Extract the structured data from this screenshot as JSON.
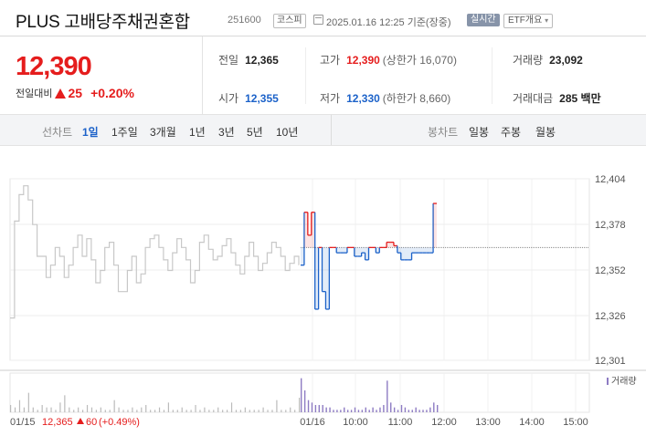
{
  "header": {
    "name": "PLUS 고배당주채권혼합",
    "code": "251600",
    "market": "코스피",
    "datetime": "2025.01.16 12:25 기준(장중)",
    "realtime": "실시간",
    "etf_button": "ETF개요"
  },
  "price": {
    "current": "12,390",
    "change_label": "전일대비",
    "change": "25",
    "change_rate": "+0.20%"
  },
  "stats": {
    "prev_label": "전일",
    "prev": "12,365",
    "high_label": "고가",
    "high": "12,390",
    "upper_limit": "(상한가 16,070)",
    "volume_label": "거래량",
    "volume": "23,092",
    "open_label": "시가",
    "open": "12,355",
    "low_label": "저가",
    "low": "12,330",
    "lower_limit": "(하한가 8,660)",
    "amount_label": "거래대금",
    "amount": "285 백만"
  },
  "tabs": {
    "line_label": "선차트",
    "periods": [
      "1일",
      "1주일",
      "3개월",
      "1년",
      "3년",
      "5년",
      "10년"
    ],
    "active_period": "1일",
    "candle_label": "봉차트",
    "candles": [
      "일봉",
      "주봉",
      "월봉"
    ]
  },
  "colors": {
    "up": "#e51d1d",
    "down": "#1c62c9",
    "neutral": "#c8c8c8",
    "volume": "#8e7cc3"
  },
  "chart_data": {
    "type": "line",
    "ylim": [
      12301,
      12404
    ],
    "y_ticks": [
      "12,404",
      "12,378",
      "12,352",
      "12,326",
      "12,301"
    ],
    "x_ticks": [
      "01/16",
      "10:00",
      "11:00",
      "12:00",
      "13:00",
      "14:00",
      "15:00"
    ],
    "base": 12365,
    "volume_label": "거래량",
    "prev_day": {
      "date": "01/15",
      "close": "12,365",
      "change": "60",
      "rate": "(+0.49%)"
    },
    "prev_series": [
      12325,
      12380,
      12395,
      12400,
      12392,
      12378,
      12360,
      12360,
      12348,
      12355,
      12365,
      12360,
      12348,
      12355,
      12365,
      12372,
      12360,
      12370,
      12358,
      12345,
      12352,
      12365,
      12368,
      12355,
      12340,
      12340,
      12352,
      12360,
      12345,
      12350,
      12365,
      12370,
      12372,
      12365,
      12358,
      12352,
      12362,
      12370,
      12365,
      12358,
      12345,
      12352,
      12368,
      12372,
      12364,
      12358,
      12360,
      12366,
      12370,
      12362,
      12355,
      12350,
      12360,
      12368,
      12360,
      12352,
      12356,
      12362,
      12368,
      12365,
      12360,
      12352,
      12356,
      12360,
      12355
    ],
    "today_series": [
      12355,
      12385,
      12372,
      12385,
      12330,
      12365,
      12340,
      12330,
      12365,
      12365,
      12362,
      12362,
      12362,
      12365,
      12365,
      12360,
      12360,
      12362,
      12358,
      12365,
      12365,
      12362,
      12365,
      12365,
      12368,
      12368,
      12366,
      12362,
      12358,
      12358,
      12358,
      12362,
      12362,
      12362,
      12362,
      12362,
      12362,
      12390,
      12390
    ],
    "prev_volume": [
      3,
      2,
      5,
      2,
      8,
      2,
      1,
      3,
      2,
      2,
      1,
      4,
      7,
      2,
      1,
      2,
      1,
      3,
      2,
      1,
      2,
      1,
      1,
      5,
      2,
      1,
      1,
      2,
      1,
      2,
      3,
      1,
      1,
      2,
      1,
      4,
      1,
      1,
      2,
      1,
      1,
      3,
      1,
      2,
      1,
      1,
      2,
      1,
      1,
      4,
      1,
      1,
      2,
      1,
      1,
      1,
      2,
      1,
      1,
      5,
      1,
      1,
      2,
      1,
      6
    ],
    "today_volume": [
      14,
      9,
      5,
      4,
      3,
      3,
      3,
      2,
      2,
      1,
      1,
      1,
      2,
      1,
      1,
      2,
      1,
      1,
      2,
      1,
      2,
      1,
      2,
      3,
      13,
      4,
      2,
      1,
      3,
      2,
      1,
      1,
      2,
      1,
      1,
      1,
      2,
      4,
      3
    ]
  }
}
